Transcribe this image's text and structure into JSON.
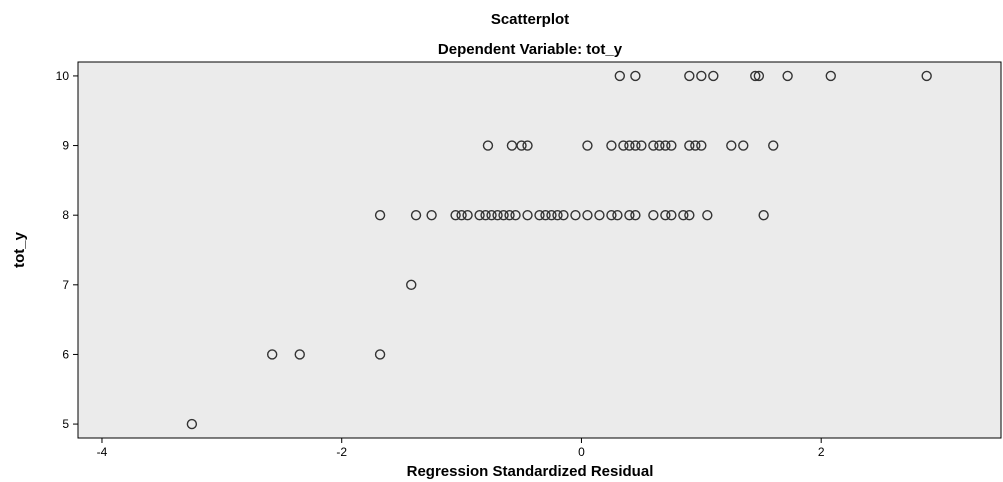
{
  "chart_data": {
    "type": "scatter",
    "title": "Scatterplot",
    "subtitle": "Dependent Variable: tot_y",
    "xlabel": "Regression Standardized Residual",
    "ylabel": "tot_y",
    "xlim": [
      -4.2,
      3.5
    ],
    "ylim": [
      4.8,
      10.2
    ],
    "xticks": [
      -4,
      -2,
      0,
      2
    ],
    "yticks": [
      5,
      6,
      7,
      8,
      9,
      10
    ],
    "grid": false,
    "marker": "hollow-circle",
    "colors": {
      "plot_bg": "#ebebeb",
      "marker": "#333333",
      "axis": "#000000"
    },
    "points": [
      {
        "x": -3.25,
        "y": 5
      },
      {
        "x": -2.58,
        "y": 6
      },
      {
        "x": -2.35,
        "y": 6
      },
      {
        "x": -1.68,
        "y": 6
      },
      {
        "x": -1.42,
        "y": 7
      },
      {
        "x": -1.68,
        "y": 8
      },
      {
        "x": -1.38,
        "y": 8
      },
      {
        "x": -1.25,
        "y": 8
      },
      {
        "x": -1.05,
        "y": 8
      },
      {
        "x": -1.0,
        "y": 8
      },
      {
        "x": -0.95,
        "y": 8
      },
      {
        "x": -0.85,
        "y": 8
      },
      {
        "x": -0.8,
        "y": 8
      },
      {
        "x": -0.75,
        "y": 8
      },
      {
        "x": -0.7,
        "y": 8
      },
      {
        "x": -0.65,
        "y": 8
      },
      {
        "x": -0.6,
        "y": 8
      },
      {
        "x": -0.55,
        "y": 8
      },
      {
        "x": -0.45,
        "y": 8
      },
      {
        "x": -0.35,
        "y": 8
      },
      {
        "x": -0.3,
        "y": 8
      },
      {
        "x": -0.25,
        "y": 8
      },
      {
        "x": -0.2,
        "y": 8
      },
      {
        "x": -0.15,
        "y": 8
      },
      {
        "x": -0.05,
        "y": 8
      },
      {
        "x": 0.05,
        "y": 8
      },
      {
        "x": 0.15,
        "y": 8
      },
      {
        "x": 0.25,
        "y": 8
      },
      {
        "x": 0.3,
        "y": 8
      },
      {
        "x": 0.4,
        "y": 8
      },
      {
        "x": 0.45,
        "y": 8
      },
      {
        "x": 0.6,
        "y": 8
      },
      {
        "x": 0.7,
        "y": 8
      },
      {
        "x": 0.75,
        "y": 8
      },
      {
        "x": 0.85,
        "y": 8
      },
      {
        "x": 0.9,
        "y": 8
      },
      {
        "x": 1.05,
        "y": 8
      },
      {
        "x": 1.52,
        "y": 8
      },
      {
        "x": -0.78,
        "y": 9
      },
      {
        "x": -0.58,
        "y": 9
      },
      {
        "x": -0.5,
        "y": 9
      },
      {
        "x": -0.45,
        "y": 9
      },
      {
        "x": 0.05,
        "y": 9
      },
      {
        "x": 0.25,
        "y": 9
      },
      {
        "x": 0.35,
        "y": 9
      },
      {
        "x": 0.4,
        "y": 9
      },
      {
        "x": 0.45,
        "y": 9
      },
      {
        "x": 0.5,
        "y": 9
      },
      {
        "x": 0.6,
        "y": 9
      },
      {
        "x": 0.65,
        "y": 9
      },
      {
        "x": 0.7,
        "y": 9
      },
      {
        "x": 0.75,
        "y": 9
      },
      {
        "x": 0.9,
        "y": 9
      },
      {
        "x": 0.95,
        "y": 9
      },
      {
        "x": 1.0,
        "y": 9
      },
      {
        "x": 1.25,
        "y": 9
      },
      {
        "x": 1.35,
        "y": 9
      },
      {
        "x": 1.6,
        "y": 9
      },
      {
        "x": 0.32,
        "y": 10
      },
      {
        "x": 0.45,
        "y": 10
      },
      {
        "x": 0.9,
        "y": 10
      },
      {
        "x": 1.0,
        "y": 10
      },
      {
        "x": 1.1,
        "y": 10
      },
      {
        "x": 1.45,
        "y": 10
      },
      {
        "x": 1.48,
        "y": 10
      },
      {
        "x": 1.72,
        "y": 10
      },
      {
        "x": 2.08,
        "y": 10
      },
      {
        "x": 2.88,
        "y": 10
      }
    ]
  }
}
